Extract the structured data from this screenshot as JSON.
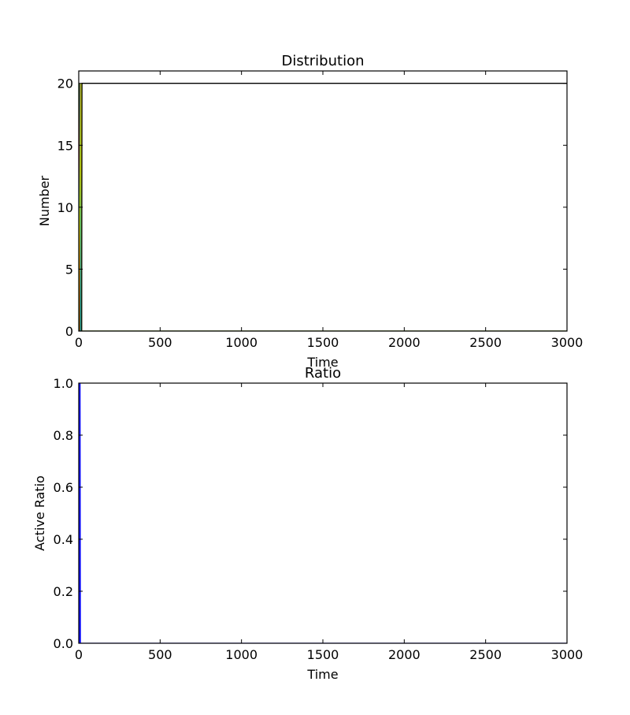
{
  "chart_data": [
    {
      "type": "line",
      "title": "Distribution",
      "xlabel": "Time",
      "ylabel": "Number",
      "xlim": [
        0,
        3000
      ],
      "ylim": [
        0,
        21
      ],
      "xticks": [
        0,
        500,
        1000,
        1500,
        2000,
        2500,
        3000
      ],
      "yticks": [
        0,
        5,
        10,
        15,
        20
      ],
      "grid": false,
      "series": [
        {
          "color": "#008000",
          "x": [
            0,
            5,
            7,
            3000
          ],
          "y": [
            0,
            20,
            0,
            0
          ]
        },
        {
          "color": "#cc0000",
          "x": [
            0,
            8,
            10,
            3000
          ],
          "y": [
            0,
            20,
            0,
            0
          ]
        },
        {
          "color": "#00bfbf",
          "x": [
            0,
            11,
            13,
            3000
          ],
          "y": [
            0,
            20,
            0,
            0
          ]
        },
        {
          "color": "#bfbf00",
          "x": [
            0,
            14,
            18,
            3000
          ],
          "y": [
            0,
            20,
            0,
            0
          ]
        },
        {
          "color": "#000000",
          "x": [
            0,
            18,
            20,
            3000
          ],
          "y": [
            0,
            0,
            20,
            20
          ]
        }
      ]
    },
    {
      "type": "line",
      "title": "Ratio",
      "xlabel": "Time",
      "ylabel": "Active Ratio",
      "xlim": [
        0,
        3000
      ],
      "ylim": [
        0,
        1
      ],
      "xticks": [
        0,
        500,
        1000,
        1500,
        2000,
        2500,
        3000
      ],
      "yticks": [
        0.0,
        0.2,
        0.4,
        0.6,
        0.8,
        1.0
      ],
      "ytick_labels": [
        "0.0",
        "0.2",
        "0.4",
        "0.6",
        "0.8",
        "1.0"
      ],
      "grid": false,
      "series": [
        {
          "color": "#0000ff",
          "x": [
            0,
            3,
            6,
            8,
            10,
            12,
            3000
          ],
          "y": [
            0,
            1,
            0,
            1,
            0,
            0,
            0
          ]
        }
      ]
    }
  ]
}
